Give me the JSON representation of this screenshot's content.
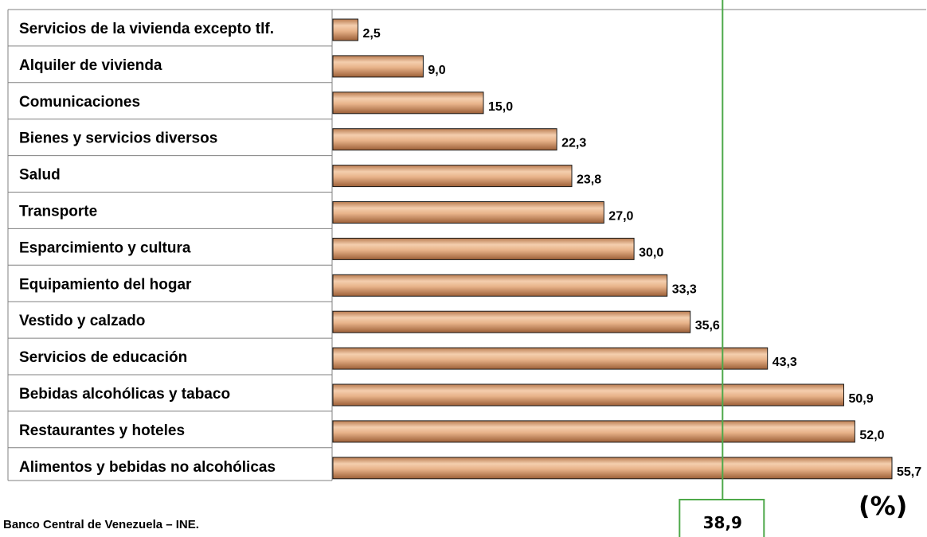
{
  "chart_data": {
    "type": "bar",
    "orientation": "horizontal",
    "categories": [
      "Servicios de la vivienda excepto tlf.",
      "Alquiler de vivienda",
      "Comunicaciones",
      "Bienes y servicios diversos",
      "Salud",
      "Transporte",
      "Esparcimiento y cultura",
      "Equipamiento del hogar",
      "Vestido y calzado",
      "Servicios de educación",
      "Bebidas alcohólicas y tabaco",
      "Restaurantes y hoteles",
      "Alimentos y bebidas no alcohólicas"
    ],
    "values": [
      2.5,
      9.0,
      15.0,
      22.3,
      23.8,
      27.0,
      30.0,
      33.3,
      35.6,
      43.3,
      50.9,
      52.0,
      55.7
    ],
    "value_labels": [
      "2,5",
      "9,0",
      "15,0",
      "22,3",
      "23,8",
      "27,0",
      "30,0",
      "33,3",
      "35,6",
      "43,3",
      "50,9",
      "52,0",
      "55,7"
    ],
    "xlim": [
      0,
      60
    ],
    "reference_line": {
      "value": 38.9,
      "label": "38,9",
      "color": "#4ea94a"
    },
    "unit_label": "(%)",
    "bar_color": "#e3a97a",
    "grid": false
  },
  "source_note": "ente: Banco Central de Venezuela – INE."
}
